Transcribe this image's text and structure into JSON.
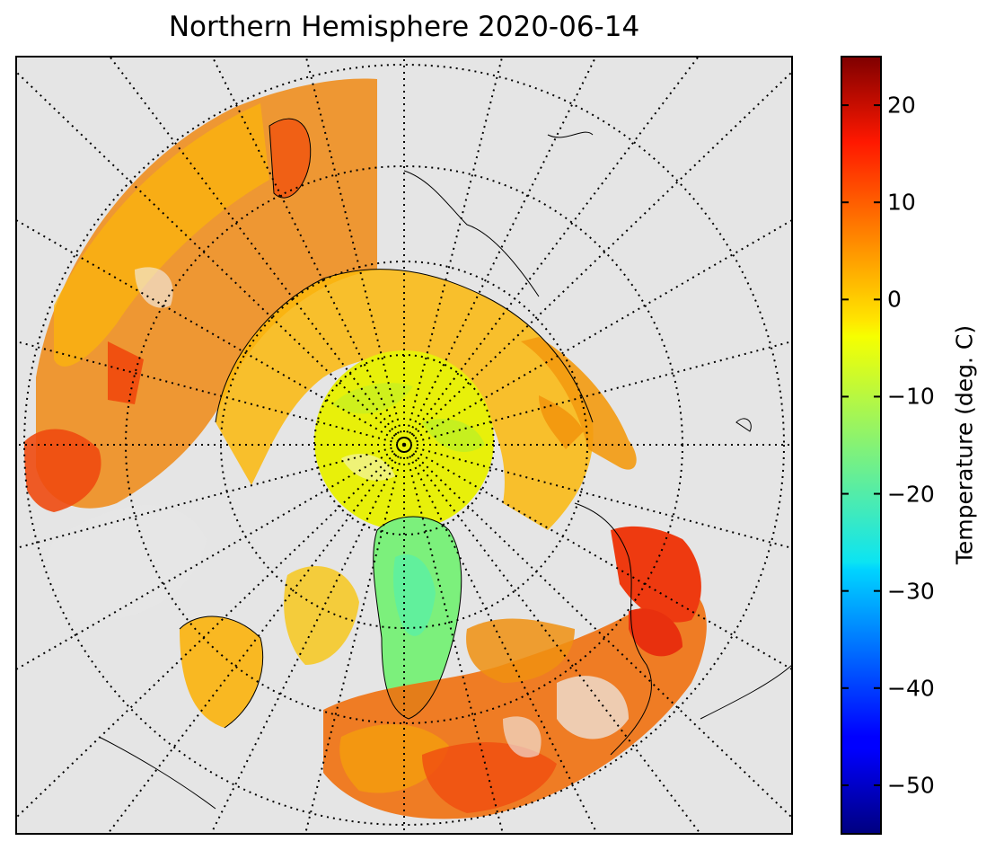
{
  "title": "Northern Hemisphere 2020-06-14",
  "colorbar": {
    "label": "Temperature (deg. C)",
    "min": -55,
    "max": 25,
    "ticks": [
      20,
      10,
      0,
      -10,
      -20,
      -30,
      -40,
      -50
    ],
    "tick_labels": [
      "20",
      "10",
      "0",
      "−10",
      "−20",
      "−30",
      "−40",
      "−50"
    ],
    "colormap": "jet"
  },
  "map": {
    "projection": "north-polar-stereographic",
    "background_color": "#e5e5e5",
    "graticule": "dotted",
    "coastlines": true
  }
}
